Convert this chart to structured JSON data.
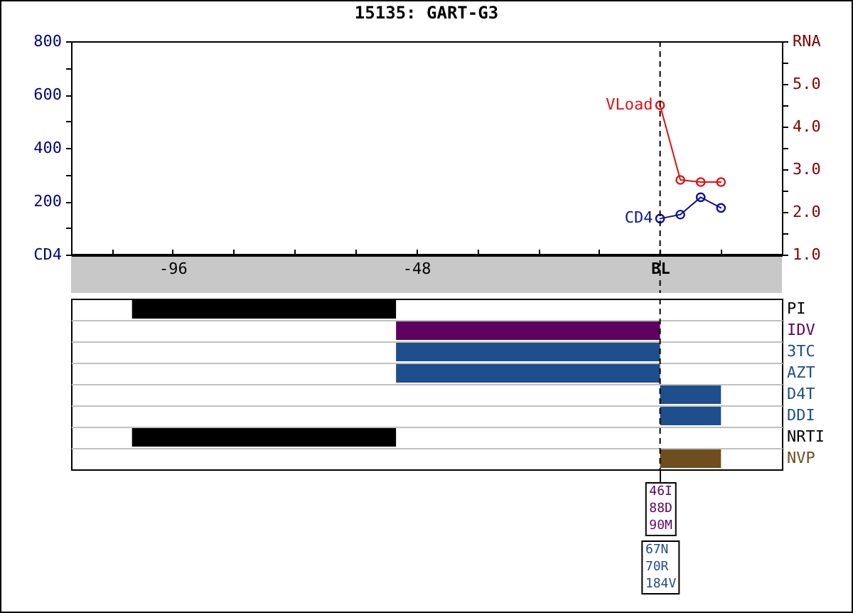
{
  "chart_data": [
    {
      "type": "line",
      "title": "15135: GART-G3",
      "xlim": [
        -116,
        24
      ],
      "xticks": [
        {
          "value": -108,
          "label": null
        },
        -96,
        {
          "value": -84,
          "label": null
        },
        {
          "value": -72,
          "label": null
        },
        {
          "value": -60,
          "label": null
        },
        -48,
        {
          "value": -36,
          "label": null
        },
        {
          "value": -24,
          "label": null
        },
        {
          "value": -12,
          "label": null
        },
        {
          "value": 0,
          "label": "BL"
        },
        {
          "value": 12,
          "label": null
        }
      ],
      "ylim": [
        0,
        800
      ],
      "yticks": [
        {
          "value": 0,
          "label": "CD4"
        },
        {
          "value": 100,
          "label": null
        },
        200,
        {
          "value": 300,
          "label": null
        },
        400,
        {
          "value": 500,
          "label": null
        },
        600,
        {
          "value": 700,
          "label": null
        },
        800
      ],
      "y2lim": [
        1,
        6
      ],
      "y2ticks": [
        {
          "value": 1,
          "label": "1.0"
        },
        {
          "value": 1.5,
          "label": null
        },
        {
          "value": 2,
          "label": "2.0"
        },
        {
          "value": 2.5,
          "label": null
        },
        {
          "value": 3,
          "label": "3.0"
        },
        {
          "value": 3.5,
          "label": null
        },
        {
          "value": 4,
          "label": "4.0"
        },
        {
          "value": 4.5,
          "label": null
        },
        {
          "value": 5,
          "label": "5.0"
        },
        {
          "value": 5.5,
          "label": null
        },
        {
          "value": 6,
          "label": "RNA"
        }
      ],
      "series": [
        {
          "name": "CD4",
          "color": "#1010a0",
          "x": [
            0,
            4,
            8,
            12
          ],
          "values": [
            135,
            150,
            215,
            175
          ]
        },
        {
          "name": "VLoad",
          "color": "#e01010",
          "axis": "y2",
          "x": [
            0,
            4,
            8,
            12
          ],
          "values": [
            4.5,
            2.75,
            2.7,
            2.7
          ]
        }
      ],
      "marker": "circle",
      "grid": false,
      "legend": false,
      "ref_lines": [
        {
          "axis": "x",
          "value": 0,
          "line_style": "dashed"
        }
      ]
    },
    {
      "type": "bar",
      "orientation": "horizontal",
      "categories": [
        "PI",
        "IDV",
        "3TC",
        "AZT",
        "D4T",
        "DDI",
        "NRTI",
        "NVP"
      ],
      "base": [
        -104,
        -52,
        -52,
        -52,
        0,
        0,
        -104,
        0
      ],
      "values": [
        52,
        52,
        52,
        52,
        12,
        12,
        52,
        12
      ],
      "colors": [
        "#000000",
        "#5f0060",
        "#1f4e8c",
        "#1f4e8c",
        "#1f4e8c",
        "#1f4e8c",
        "#000000",
        "#6f4e1e"
      ],
      "xlim": [
        -116,
        24
      ],
      "tick_labels": "y",
      "grid": "y",
      "ref_lines": [
        {
          "axis": "x",
          "value": 0,
          "line_style": "dashed"
        }
      ],
      "annotations": [
        "46I\n88D\n90M",
        "67N\n70R\n184V"
      ]
    }
  ]
}
